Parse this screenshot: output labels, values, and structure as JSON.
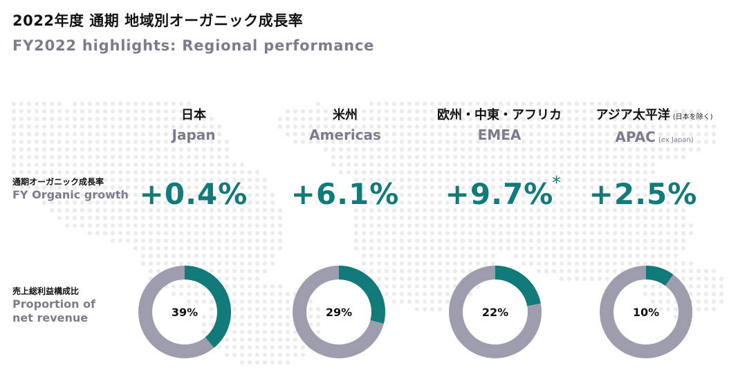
{
  "title_jp": "2022年度 通期 地域別オーガニック成長率",
  "title_en": "FY2022 highlights: Regional performance",
  "labels": {
    "growth_jp": "通期オーガニック成長率",
    "growth_en": "FY Organic growth",
    "proportion_jp": "売上総利益構成比",
    "proportion_en_line1": "Proportion of",
    "proportion_en_line2": "net revenue"
  },
  "regions": [
    {
      "name_jp": "日本",
      "name_en": "Japan",
      "growth": "+0.4%",
      "share_label": "39%",
      "share": 0.39
    },
    {
      "name_jp": "米州",
      "name_en": "Americas",
      "growth": "+6.1%",
      "share_label": "29%",
      "share": 0.29
    },
    {
      "name_jp": "欧州・中東・アフリカ",
      "name_en": "EMEA",
      "growth": "+9.7%",
      "asterisk": "*",
      "share_label": "22%",
      "share": 0.22
    },
    {
      "name_jp": "アジア太平洋",
      "note_jp": "(日本を除く)",
      "name_en": "APAC",
      "note_en": "(ex Japan)",
      "growth": "+2.5%",
      "share_label": "10%",
      "share": 0.1
    }
  ],
  "colors": {
    "accent": "#137a7a",
    "ring_base": "#9d9dad",
    "map_dot": "#ececf0"
  }
}
